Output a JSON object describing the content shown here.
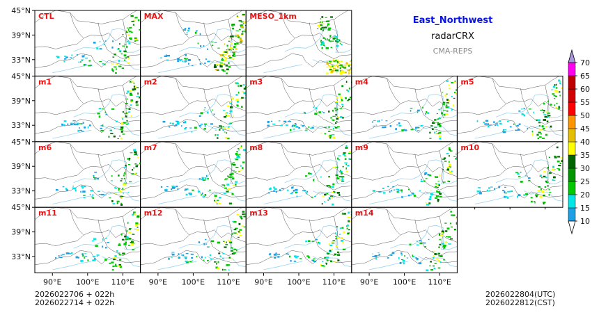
{
  "header": {
    "region": "East_Northwest",
    "variable": "radarCRX",
    "system": "CMA-REPS"
  },
  "footer": {
    "init_utc": "2026022706  +  022h",
    "init_cst": "2026022714  +  022h",
    "valid_utc": "2026022804(UTC)",
    "valid_cst": "2026022812(CST)"
  },
  "panels": [
    [
      "CTL",
      "MAX",
      "MESO_1km"
    ],
    [
      "m1",
      "m2",
      "m3",
      "m4",
      "m5"
    ],
    [
      "m6",
      "m7",
      "m8",
      "m9",
      "m10"
    ],
    [
      "m11",
      "m12",
      "m13",
      "m14"
    ]
  ],
  "axes": {
    "lat_row_labels": [
      [
        "45°N",
        "39°N",
        "33°N"
      ],
      [
        "45°N",
        "39°N",
        "33°N"
      ],
      [
        "45°N",
        "39°N",
        "33°N"
      ],
      [
        "45°N",
        "39°N",
        "33°N"
      ]
    ],
    "lon_labels": [
      "90°E",
      "100°E",
      "110°E"
    ]
  },
  "colorbar": {
    "levels": [
      "10",
      "15",
      "20",
      "25",
      "30",
      "35",
      "40",
      "45",
      "50",
      "55",
      "60",
      "65",
      "70"
    ],
    "colors": [
      "#1ea0e6",
      "#00e6e6",
      "#00c800",
      "#009600",
      "#006400",
      "#ffff00",
      "#e6be00",
      "#ff9600",
      "#ff0000",
      "#d20000",
      "#c00000",
      "#ff00f0",
      "#9600b4",
      "#aa96dc"
    ]
  },
  "style": {
    "panel_label_color": "#e61414",
    "border_color": "#555555",
    "river_color": "#9ad3ee"
  }
}
